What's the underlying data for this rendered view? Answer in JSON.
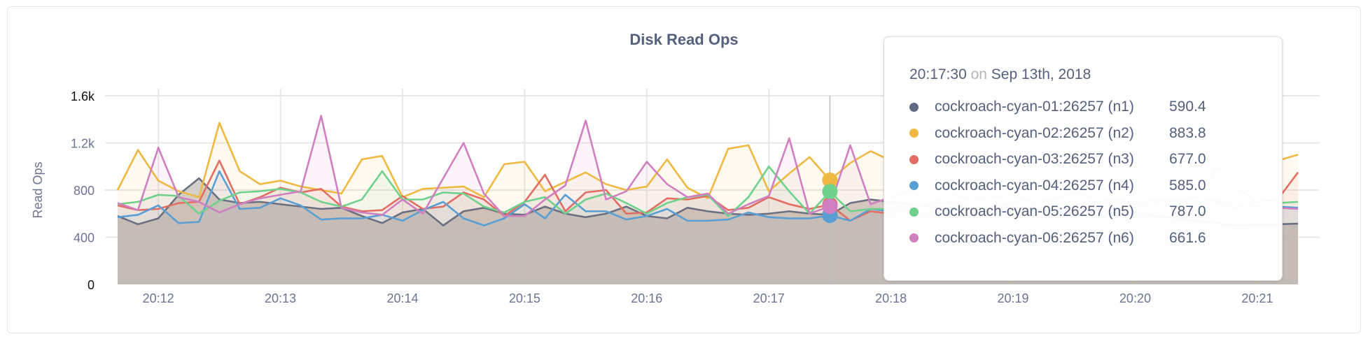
{
  "chart_data": {
    "type": "area",
    "title": "Disk Read Ops",
    "ylabel": "Read Ops",
    "xlabel": "",
    "ylim": [
      0,
      1600
    ],
    "y_ticks": [
      "0",
      "400",
      "800",
      "1.2k",
      "1.6k"
    ],
    "y_tick_values": [
      0,
      400,
      800,
      1200,
      1600
    ],
    "x_ticks": [
      "20:12",
      "20:13",
      "20:14",
      "20:15",
      "20:16",
      "20:17",
      "20:18",
      "20:19",
      "20:20",
      "20:21"
    ],
    "x": [
      "20:11:40",
      "20:11:50",
      "20:12:00",
      "20:12:10",
      "20:12:20",
      "20:12:30",
      "20:12:40",
      "20:12:50",
      "20:13:00",
      "20:13:10",
      "20:13:20",
      "20:13:30",
      "20:13:40",
      "20:13:50",
      "20:14:00",
      "20:14:10",
      "20:14:20",
      "20:14:30",
      "20:14:40",
      "20:14:50",
      "20:15:00",
      "20:15:10",
      "20:15:20",
      "20:15:30",
      "20:15:40",
      "20:15:50",
      "20:16:00",
      "20:16:10",
      "20:16:20",
      "20:16:30",
      "20:16:40",
      "20:16:50",
      "20:17:00",
      "20:17:10",
      "20:17:20",
      "20:17:30",
      "20:17:40",
      "20:17:50",
      "20:18:00",
      "20:18:10",
      "20:18:20",
      "20:18:30",
      "20:18:40",
      "20:18:50",
      "20:19:00",
      "20:19:10",
      "20:19:20",
      "20:19:30",
      "20:19:40",
      "20:19:50",
      "20:20:00",
      "20:20:10",
      "20:20:20",
      "20:20:30",
      "20:20:40",
      "20:20:50",
      "20:21:00",
      "20:21:10",
      "20:21:20"
    ],
    "grid": true,
    "series": [
      {
        "name": "cockroach-cyan-01:26257 (n1)",
        "color": "#6b7080",
        "values": [
          580,
          510,
          560,
          760,
          900,
          720,
          690,
          700,
          680,
          660,
          640,
          650,
          580,
          520,
          610,
          640,
          500,
          620,
          650,
          600,
          590,
          660,
          600,
          570,
          600,
          660,
          580,
          560,
          650,
          620,
          600,
          590,
          600,
          620,
          600,
          590,
          690,
          720,
          700,
          680,
          660,
          650,
          640,
          660,
          650,
          640,
          620,
          600,
          620,
          640,
          610,
          580,
          560,
          540,
          520,
          500,
          505,
          510,
          515
        ]
      },
      {
        "name": "cockroach-cyan-02:26257 (n2)",
        "color": "#efb941",
        "values": [
          800,
          1140,
          880,
          790,
          740,
          1370,
          960,
          850,
          880,
          830,
          800,
          770,
          1060,
          1090,
          740,
          810,
          820,
          830,
          740,
          1020,
          1040,
          790,
          870,
          950,
          850,
          800,
          830,
          1060,
          820,
          730,
          1150,
          1180,
          790,
          940,
          1080,
          884,
          1030,
          1130,
          1050,
          980,
          1100,
          1000,
          950,
          1080,
          1020,
          960,
          1120,
          1000,
          980,
          1060,
          990,
          1050,
          960,
          1010,
          1040,
          980,
          1000,
          1050,
          1100
        ]
      },
      {
        "name": "cockroach-cyan-03:26257 (n3)",
        "color": "#e26d63",
        "values": [
          670,
          630,
          640,
          690,
          700,
          1050,
          680,
          740,
          820,
          780,
          810,
          660,
          620,
          630,
          750,
          640,
          660,
          780,
          720,
          580,
          700,
          930,
          620,
          780,
          800,
          600,
          610,
          730,
          720,
          750,
          630,
          650,
          740,
          680,
          640,
          677,
          540,
          620,
          600,
          650,
          680,
          700,
          640,
          660,
          700,
          680,
          640,
          660,
          700,
          680,
          650,
          700,
          720,
          680,
          690,
          650,
          700,
          720,
          950
        ]
      },
      {
        "name": "cockroach-cyan-04:26257 (n4)",
        "color": "#5a9fd4",
        "values": [
          570,
          590,
          670,
          520,
          530,
          960,
          640,
          650,
          730,
          670,
          550,
          560,
          560,
          590,
          540,
          630,
          700,
          560,
          500,
          560,
          680,
          560,
          760,
          620,
          620,
          550,
          580,
          640,
          540,
          540,
          550,
          610,
          570,
          560,
          560,
          585,
          540,
          640,
          620,
          600,
          580,
          640,
          620,
          600,
          610,
          630,
          600,
          620,
          640,
          610,
          600,
          620,
          640,
          630,
          1000,
          820,
          700,
          660,
          650
        ]
      },
      {
        "name": "cockroach-cyan-05:26257 (n5)",
        "color": "#6fd18c",
        "values": [
          680,
          700,
          760,
          750,
          600,
          710,
          780,
          790,
          810,
          780,
          700,
          660,
          720,
          960,
          720,
          720,
          780,
          770,
          660,
          610,
          700,
          740,
          600,
          720,
          770,
          690,
          600,
          690,
          740,
          760,
          580,
          740,
          1000,
          790,
          600,
          787,
          620,
          640,
          640,
          660,
          700,
          680,
          650,
          660,
          680,
          700,
          690,
          670,
          700,
          720,
          700,
          690,
          680,
          700,
          720,
          680,
          700,
          690,
          700
        ]
      },
      {
        "name": "cockroach-cyan-06:26257 (n6)",
        "color": "#d07fc0",
        "values": [
          690,
          630,
          1160,
          740,
          700,
          610,
          680,
          730,
          760,
          790,
          1430,
          650,
          610,
          590,
          720,
          600,
          900,
          1200,
          770,
          580,
          580,
          720,
          840,
          1390,
          720,
          790,
          1040,
          850,
          740,
          770,
          600,
          680,
          750,
          1240,
          600,
          662,
          1180,
          680,
          740,
          800,
          700,
          760,
          720,
          740,
          760,
          700,
          720,
          780,
          740,
          700,
          680,
          720,
          700,
          740,
          700,
          680,
          660,
          650,
          640
        ]
      }
    ]
  },
  "tooltip": {
    "time": "20:17:30",
    "on": "on",
    "date": "Sep 13th, 2018",
    "hover_x": "20:17:30",
    "rows": [
      {
        "name": "cockroach-cyan-01:26257 (n1)",
        "value": "590.4",
        "color": "#5f6b85"
      },
      {
        "name": "cockroach-cyan-02:26257 (n2)",
        "value": "883.8",
        "color": "#efb941"
      },
      {
        "name": "cockroach-cyan-03:26257 (n3)",
        "value": "677.0",
        "color": "#e26d63"
      },
      {
        "name": "cockroach-cyan-04:26257 (n4)",
        "value": "585.0",
        "color": "#5a9fd4"
      },
      {
        "name": "cockroach-cyan-05:26257 (n5)",
        "value": "787.0",
        "color": "#6fd18c"
      },
      {
        "name": "cockroach-cyan-06:26257 (n6)",
        "value": "661.6",
        "color": "#d07fc0"
      }
    ]
  }
}
